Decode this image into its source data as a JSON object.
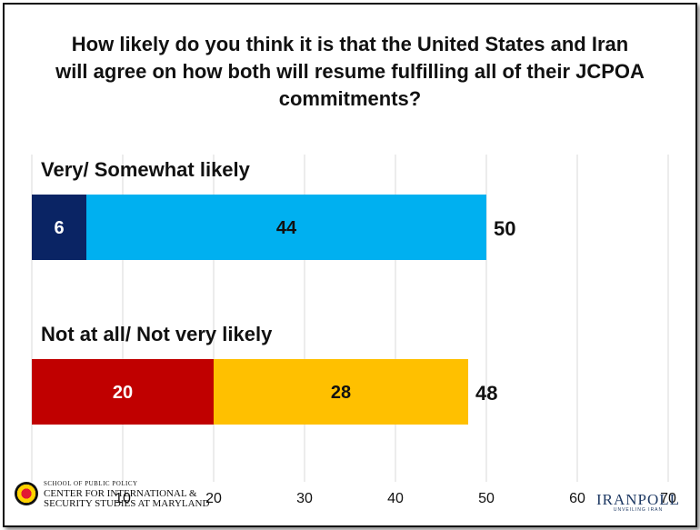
{
  "title": "How likely do you think it is that the United States and Iran\nwill agree on how both will resume fulfilling all of their JCPOA\ncommitments?",
  "footer": {
    "school": "SCHOOL OF PUBLIC POLICY",
    "center": "CENTER FOR INTERNATIONAL &\nSECURITY STUDIES AT MARYLAND",
    "brand": "IRANPOLL",
    "tagline": "UNVEILING IRAN"
  },
  "chart_data": {
    "type": "bar",
    "orientation": "horizontal",
    "stacked": true,
    "title": "How likely do you think it is that the United States and Iran will agree on how both will resume fulfilling all of their JCPOA commitments?",
    "categories": [
      "Very/ Somewhat likely",
      "Not at all/ Not very likely"
    ],
    "bars": [
      {
        "label": "Very/ Somewhat likely",
        "total": 50,
        "segments": [
          {
            "value": 6,
            "label": "6",
            "color": "#0a2464",
            "label_color": "#ffffff"
          },
          {
            "value": 44,
            "label": "44",
            "color": "#00b0f0",
            "label_color": "#111111"
          }
        ]
      },
      {
        "label": "Not at all/ Not very likely",
        "total": 48,
        "segments": [
          {
            "value": 20,
            "label": "20",
            "color": "#c00000",
            "label_color": "#ffffff"
          },
          {
            "value": 28,
            "label": "28",
            "color": "#ffc000",
            "label_color": "#111111"
          }
        ]
      }
    ],
    "xlim": [
      0,
      70
    ],
    "xticks": [
      0,
      10,
      20,
      30,
      40,
      50,
      60,
      70
    ],
    "xtick_labels": [
      "",
      "10",
      "20",
      "30",
      "40",
      "50",
      "60",
      "70"
    ],
    "grid": "vertical",
    "gridline_color": "#d9d9d9"
  }
}
